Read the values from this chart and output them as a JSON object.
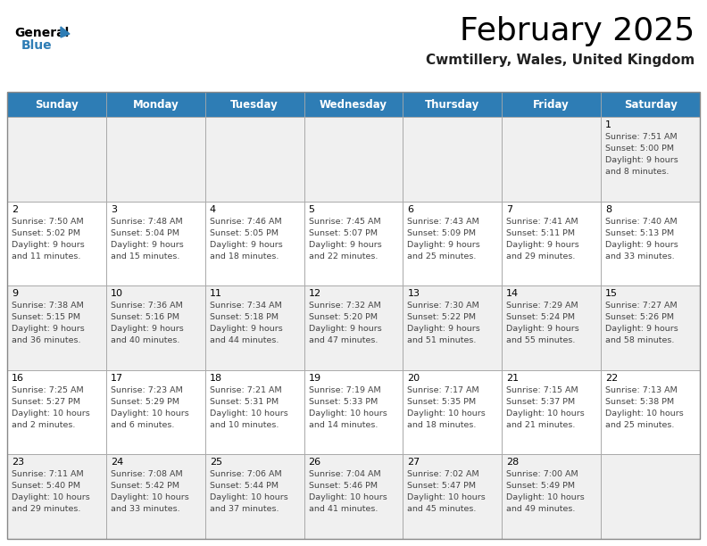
{
  "title": "February 2025",
  "subtitle": "Cwmtillery, Wales, United Kingdom",
  "days_of_week": [
    "Sunday",
    "Monday",
    "Tuesday",
    "Wednesday",
    "Thursday",
    "Friday",
    "Saturday"
  ],
  "header_bg": "#2e7db5",
  "header_text": "#ffffff",
  "bg_color": "#ffffff",
  "cell_alt_bg": "#f0f0f0",
  "grid_color": "#aaaaaa",
  "title_color": "#000000",
  "subtitle_color": "#222222",
  "day_num_color": "#000000",
  "cell_text_color": "#444444",
  "calendar": [
    [
      null,
      null,
      null,
      null,
      null,
      null,
      {
        "day": 1,
        "sunrise": "7:51 AM",
        "sunset": "5:00 PM",
        "daylight": "9 hours",
        "daylight2": "and 8 minutes."
      }
    ],
    [
      {
        "day": 2,
        "sunrise": "7:50 AM",
        "sunset": "5:02 PM",
        "daylight": "9 hours",
        "daylight2": "and 11 minutes."
      },
      {
        "day": 3,
        "sunrise": "7:48 AM",
        "sunset": "5:04 PM",
        "daylight": "9 hours",
        "daylight2": "and 15 minutes."
      },
      {
        "day": 4,
        "sunrise": "7:46 AM",
        "sunset": "5:05 PM",
        "daylight": "9 hours",
        "daylight2": "and 18 minutes."
      },
      {
        "day": 5,
        "sunrise": "7:45 AM",
        "sunset": "5:07 PM",
        "daylight": "9 hours",
        "daylight2": "and 22 minutes."
      },
      {
        "day": 6,
        "sunrise": "7:43 AM",
        "sunset": "5:09 PM",
        "daylight": "9 hours",
        "daylight2": "and 25 minutes."
      },
      {
        "day": 7,
        "sunrise": "7:41 AM",
        "sunset": "5:11 PM",
        "daylight": "9 hours",
        "daylight2": "and 29 minutes."
      },
      {
        "day": 8,
        "sunrise": "7:40 AM",
        "sunset": "5:13 PM",
        "daylight": "9 hours",
        "daylight2": "and 33 minutes."
      }
    ],
    [
      {
        "day": 9,
        "sunrise": "7:38 AM",
        "sunset": "5:15 PM",
        "daylight": "9 hours",
        "daylight2": "and 36 minutes."
      },
      {
        "day": 10,
        "sunrise": "7:36 AM",
        "sunset": "5:16 PM",
        "daylight": "9 hours",
        "daylight2": "and 40 minutes."
      },
      {
        "day": 11,
        "sunrise": "7:34 AM",
        "sunset": "5:18 PM",
        "daylight": "9 hours",
        "daylight2": "and 44 minutes."
      },
      {
        "day": 12,
        "sunrise": "7:32 AM",
        "sunset": "5:20 PM",
        "daylight": "9 hours",
        "daylight2": "and 47 minutes."
      },
      {
        "day": 13,
        "sunrise": "7:30 AM",
        "sunset": "5:22 PM",
        "daylight": "9 hours",
        "daylight2": "and 51 minutes."
      },
      {
        "day": 14,
        "sunrise": "7:29 AM",
        "sunset": "5:24 PM",
        "daylight": "9 hours",
        "daylight2": "and 55 minutes."
      },
      {
        "day": 15,
        "sunrise": "7:27 AM",
        "sunset": "5:26 PM",
        "daylight": "9 hours",
        "daylight2": "and 58 minutes."
      }
    ],
    [
      {
        "day": 16,
        "sunrise": "7:25 AM",
        "sunset": "5:27 PM",
        "daylight": "10 hours",
        "daylight2": "and 2 minutes."
      },
      {
        "day": 17,
        "sunrise": "7:23 AM",
        "sunset": "5:29 PM",
        "daylight": "10 hours",
        "daylight2": "and 6 minutes."
      },
      {
        "day": 18,
        "sunrise": "7:21 AM",
        "sunset": "5:31 PM",
        "daylight": "10 hours",
        "daylight2": "and 10 minutes."
      },
      {
        "day": 19,
        "sunrise": "7:19 AM",
        "sunset": "5:33 PM",
        "daylight": "10 hours",
        "daylight2": "and 14 minutes."
      },
      {
        "day": 20,
        "sunrise": "7:17 AM",
        "sunset": "5:35 PM",
        "daylight": "10 hours",
        "daylight2": "and 18 minutes."
      },
      {
        "day": 21,
        "sunrise": "7:15 AM",
        "sunset": "5:37 PM",
        "daylight": "10 hours",
        "daylight2": "and 21 minutes."
      },
      {
        "day": 22,
        "sunrise": "7:13 AM",
        "sunset": "5:38 PM",
        "daylight": "10 hours",
        "daylight2": "and 25 minutes."
      }
    ],
    [
      {
        "day": 23,
        "sunrise": "7:11 AM",
        "sunset": "5:40 PM",
        "daylight": "10 hours",
        "daylight2": "and 29 minutes."
      },
      {
        "day": 24,
        "sunrise": "7:08 AM",
        "sunset": "5:42 PM",
        "daylight": "10 hours",
        "daylight2": "and 33 minutes."
      },
      {
        "day": 25,
        "sunrise": "7:06 AM",
        "sunset": "5:44 PM",
        "daylight": "10 hours",
        "daylight2": "and 37 minutes."
      },
      {
        "day": 26,
        "sunrise": "7:04 AM",
        "sunset": "5:46 PM",
        "daylight": "10 hours",
        "daylight2": "and 41 minutes."
      },
      {
        "day": 27,
        "sunrise": "7:02 AM",
        "sunset": "5:47 PM",
        "daylight": "10 hours",
        "daylight2": "and 45 minutes."
      },
      {
        "day": 28,
        "sunrise": "7:00 AM",
        "sunset": "5:49 PM",
        "daylight": "10 hours",
        "daylight2": "and 49 minutes."
      },
      null
    ]
  ]
}
